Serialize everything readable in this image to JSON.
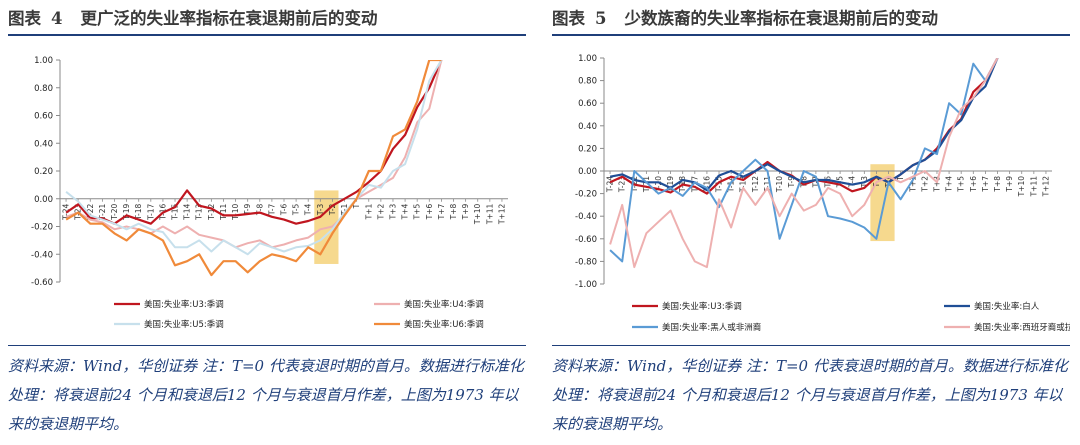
{
  "charts": [
    {
      "figure_label": "图表",
      "figure_number": "4",
      "title": "更广泛的失业率指标在衰退期前后的变动",
      "note": "资料来源：Wind，华创证券 注：T=0 代表衰退时期的首月。数据进行标准化处理：将衰退前24 个月和衰退后12 个月与衰退首月作差，上图为1973 年以来的衰退期平均。",
      "chart_data": {
        "type": "line",
        "title": "",
        "xlabel": "",
        "ylabel": "",
        "x": [
          "T-24",
          "T-23",
          "T-22",
          "T-21",
          "T-20",
          "T-19",
          "T-18",
          "T-17",
          "T-16",
          "T-15",
          "T-14",
          "T-13",
          "T-12",
          "T-11",
          "T-10",
          "T-9",
          "T-8",
          "T-7",
          "T-6",
          "T-5",
          "T-4",
          "T-3",
          "T-2",
          "T-1",
          "T",
          "T+1",
          "T+2",
          "T+3",
          "T+4",
          "T+5",
          "T+6",
          "T+7",
          "T+8",
          "T+9",
          "T+10",
          "T+11",
          "T+12"
        ],
        "ylim": [
          -0.6,
          1.0
        ],
        "yticks": [
          -0.6,
          -0.4,
          -0.2,
          0.0,
          0.2,
          0.4,
          0.6,
          0.8,
          1.0
        ],
        "ytick_labels": [
          "-0.60",
          "-0.40",
          "-0.20",
          "0.00",
          "0.20",
          "0.40",
          "0.60",
          "0.80",
          "1.00"
        ],
        "grid": false,
        "legend_position": "bottom",
        "highlight": {
          "from": "T-3",
          "to": "T-2",
          "color": "#f5d27a"
        },
        "series": [
          {
            "name": "美国:失业率:U3:季调",
            "color": "#c0161f",
            "width": 2.2,
            "values": [
              -0.1,
              -0.04,
              -0.14,
              -0.14,
              -0.18,
              -0.12,
              -0.15,
              -0.18,
              -0.1,
              -0.06,
              0.06,
              -0.05,
              -0.07,
              -0.12,
              -0.12,
              -0.11,
              -0.1,
              -0.13,
              -0.15,
              -0.18,
              -0.16,
              -0.13,
              -0.05,
              0.0,
              0.05,
              0.12,
              0.2,
              0.36,
              0.46,
              0.66,
              0.8,
              1.0,
              null,
              null,
              null,
              null,
              null
            ]
          },
          {
            "name": "美国:失业率:U4:季调",
            "color": "#eeb0b0",
            "width": 2.0,
            "values": [
              -0.13,
              -0.1,
              -0.15,
              -0.17,
              -0.22,
              -0.2,
              -0.22,
              -0.25,
              -0.2,
              -0.25,
              -0.2,
              -0.26,
              -0.28,
              -0.3,
              -0.35,
              -0.32,
              -0.3,
              -0.35,
              -0.33,
              -0.3,
              -0.28,
              -0.22,
              -0.2,
              -0.12,
              0.0,
              0.05,
              0.1,
              0.15,
              0.3,
              0.55,
              0.65,
              1.0,
              null,
              null,
              null,
              null,
              null
            ]
          },
          {
            "name": "美国:失业率:U5:季调",
            "color": "#c7e0ec",
            "width": 2.0,
            "values": [
              0.05,
              -0.02,
              -0.12,
              -0.15,
              -0.18,
              -0.22,
              -0.18,
              -0.22,
              -0.24,
              -0.35,
              -0.35,
              -0.3,
              -0.38,
              -0.3,
              -0.35,
              -0.4,
              -0.32,
              -0.35,
              -0.38,
              -0.35,
              -0.34,
              -0.3,
              -0.22,
              -0.1,
              0.0,
              0.1,
              0.08,
              0.2,
              0.25,
              0.5,
              0.85,
              1.0,
              null,
              null,
              null,
              null,
              null
            ]
          },
          {
            "name": "美国:失业率:U6:季调",
            "color": "#f08a3a",
            "width": 2.2,
            "values": [
              -0.15,
              -0.1,
              -0.18,
              -0.18,
              -0.25,
              -0.3,
              -0.22,
              -0.25,
              -0.3,
              -0.48,
              -0.45,
              -0.4,
              -0.55,
              -0.45,
              -0.45,
              -0.53,
              -0.45,
              -0.4,
              -0.42,
              -0.45,
              -0.35,
              -0.4,
              -0.25,
              -0.12,
              0.0,
              0.2,
              0.2,
              0.45,
              0.5,
              0.7,
              1.0,
              1.0,
              null,
              null,
              null,
              null,
              null
            ]
          }
        ]
      }
    },
    {
      "figure_label": "图表",
      "figure_number": "5",
      "title": "少数族裔的失业率指标在衰退期前后的变动",
      "note": "资料来源：Wind，华创证券 注：T=0 代表衰退时期的首月。数据进行标准化处理：将衰退前24 个月和衰退后12 个月与衰退首月作差，上图为1973 年以来的衰退期平均。",
      "chart_data": {
        "type": "line",
        "title": "",
        "xlabel": "",
        "ylabel": "",
        "x": [
          "T-24",
          "T-23",
          "T-22",
          "T-21",
          "T-20",
          "T-19",
          "T-18",
          "T-17",
          "T-16",
          "T-15",
          "T-14",
          "T-13",
          "T-12",
          "T-11",
          "T-10",
          "T-9",
          "T-8",
          "T-7",
          "T-6",
          "T-5",
          "T-4",
          "T-3",
          "T-2",
          "T-1",
          "T",
          "T+1",
          "T+2",
          "T+3",
          "T+4",
          "T+5",
          "T+6",
          "T+7",
          "T+8",
          "T+9",
          "T+10",
          "T+11",
          "T+12"
        ],
        "ylim": [
          -1.0,
          1.0
        ],
        "yticks": [
          -1.0,
          -0.8,
          -0.6,
          -0.4,
          -0.2,
          0.0,
          0.2,
          0.4,
          0.6,
          0.8,
          1.0
        ],
        "ytick_labels": [
          "-1.00",
          "-0.80",
          "-0.60",
          "-0.40",
          "-0.20",
          "0.00",
          "0.20",
          "0.40",
          "0.60",
          "0.80",
          "1.00"
        ],
        "grid": false,
        "legend_position": "bottom",
        "highlight": {
          "from": "T-2",
          "to": "T-1",
          "color": "#f5d27a"
        },
        "series": [
          {
            "name": "美国:失业率:U3:季调",
            "color": "#c0161f",
            "width": 2.2,
            "values": [
              -0.1,
              -0.05,
              -0.12,
              -0.14,
              -0.16,
              -0.19,
              -0.12,
              -0.14,
              -0.2,
              -0.1,
              -0.05,
              -0.08,
              0.0,
              0.08,
              0.0,
              -0.04,
              -0.12,
              -0.08,
              -0.1,
              -0.12,
              -0.18,
              -0.15,
              -0.05,
              -0.1,
              -0.03,
              0.05,
              0.1,
              0.2,
              0.36,
              0.46,
              0.7,
              0.8,
              1.0,
              null,
              null,
              null,
              null
            ]
          },
          {
            "name": "美国:失业率:白人",
            "color": "#1f4e96",
            "width": 2.2,
            "values": [
              -0.05,
              -0.03,
              -0.08,
              -0.1,
              -0.1,
              -0.15,
              -0.08,
              -0.1,
              -0.17,
              -0.04,
              0.0,
              -0.05,
              0.0,
              0.06,
              0.0,
              -0.05,
              -0.1,
              -0.08,
              -0.08,
              -0.1,
              -0.12,
              -0.1,
              -0.05,
              -0.1,
              -0.03,
              0.05,
              0.1,
              0.18,
              0.35,
              0.45,
              0.65,
              0.75,
              1.0,
              null,
              null,
              null,
              null
            ]
          },
          {
            "name": "美国:失业率:黑人或非洲裔",
            "color": "#5a9bd5",
            "width": 2.0,
            "values": [
              -0.7,
              -0.8,
              0.0,
              -0.1,
              -0.2,
              -0.15,
              -0.22,
              -0.1,
              -0.15,
              -0.32,
              -0.1,
              0.0,
              0.1,
              0.0,
              -0.6,
              -0.3,
              0.0,
              -0.05,
              -0.4,
              -0.42,
              -0.45,
              -0.5,
              -0.6,
              -0.1,
              -0.25,
              -0.08,
              0.2,
              0.15,
              0.6,
              0.5,
              0.95,
              0.8,
              1.0,
              null,
              null,
              null,
              null
            ]
          },
          {
            "name": "美国:失业率:西班牙裔或拉丁美洲裔",
            "color": "#eeb0b0",
            "width": 2.0,
            "values": [
              -0.65,
              -0.3,
              -0.85,
              -0.55,
              -0.45,
              -0.35,
              -0.6,
              -0.8,
              -0.85,
              -0.25,
              -0.5,
              -0.15,
              -0.3,
              -0.15,
              -0.4,
              -0.2,
              -0.35,
              -0.3,
              -0.15,
              -0.2,
              -0.4,
              -0.3,
              -0.1,
              -0.05,
              -0.1,
              -0.05,
              0.0,
              -0.1,
              0.3,
              0.55,
              0.65,
              0.8,
              1.0,
              null,
              null,
              null,
              null
            ]
          }
        ]
      }
    }
  ]
}
